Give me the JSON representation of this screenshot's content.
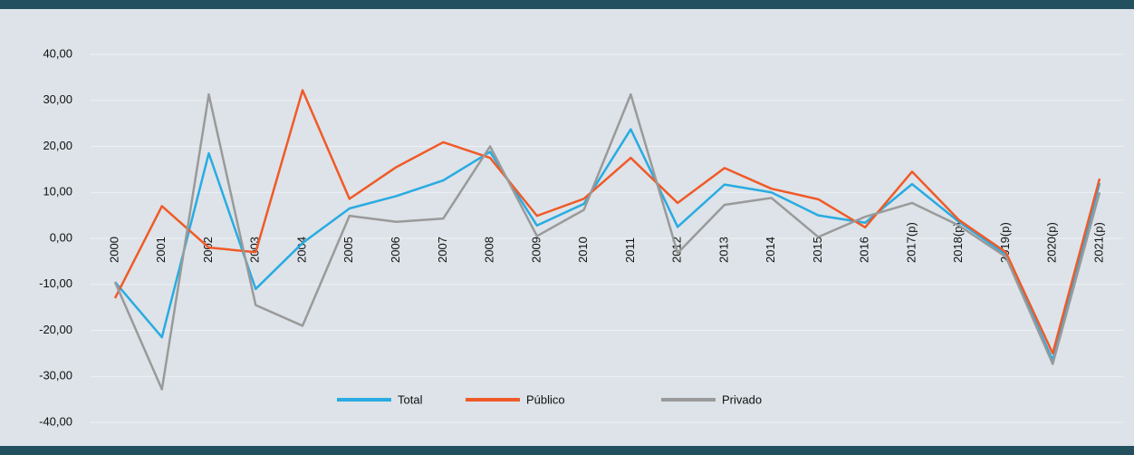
{
  "chart_data": {
    "type": "line",
    "categories": [
      "2000",
      "2001",
      "2002",
      "2003",
      "2004",
      "2005",
      "2006",
      "2007",
      "2008",
      "2009",
      "2010",
      "2011",
      "2012",
      "2013",
      "2014",
      "2015",
      "2016",
      "2017(p)",
      "2018(p)",
      "2019(p)",
      "2020(p)",
      "2021(p)"
    ],
    "series": [
      {
        "name": "Total",
        "color": "#29abe2",
        "values": [
          -9.5,
          -21.5,
          18.5,
          -11,
          -1,
          6.5,
          9.2,
          12.6,
          18.8,
          2.8,
          7.5,
          23.7,
          2.5,
          11.7,
          10,
          5,
          3.4,
          11.8,
          3.6,
          -3.5,
          -26.5,
          12
        ]
      },
      {
        "name": "Público",
        "color": "#f05a28",
        "values": [
          -13,
          7,
          -2,
          -3,
          32.2,
          8.6,
          15.5,
          20.9,
          17.5,
          4.9,
          8.6,
          17.5,
          7.7,
          15.3,
          10.8,
          8.5,
          2.4,
          14.5,
          4,
          -3,
          -25,
          13
        ]
      },
      {
        "name": "Privado",
        "color": "#9a9a9a",
        "values": [
          -9.5,
          -32.8,
          31.3,
          -14.5,
          -19,
          4.9,
          3.6,
          4.3,
          20,
          0.5,
          6.2,
          31.3,
          -3.2,
          7.3,
          8.8,
          0.3,
          4.7,
          7.7,
          2.8,
          -4,
          -27.3,
          10
        ]
      }
    ],
    "ylim": [
      -40,
      40
    ],
    "yticks": [
      {
        "value": -40,
        "label": "-40,00"
      },
      {
        "value": -30,
        "label": "-30,00"
      },
      {
        "value": -20,
        "label": "-20,00"
      },
      {
        "value": -10,
        "label": "-10,00"
      },
      {
        "value": 0,
        "label": "0,00"
      },
      {
        "value": 10,
        "label": "10,00"
      },
      {
        "value": 20,
        "label": "20,00"
      },
      {
        "value": 30,
        "label": "30,00"
      },
      {
        "value": 40,
        "label": "40,00"
      }
    ],
    "grid": true,
    "legend": "bottom"
  }
}
